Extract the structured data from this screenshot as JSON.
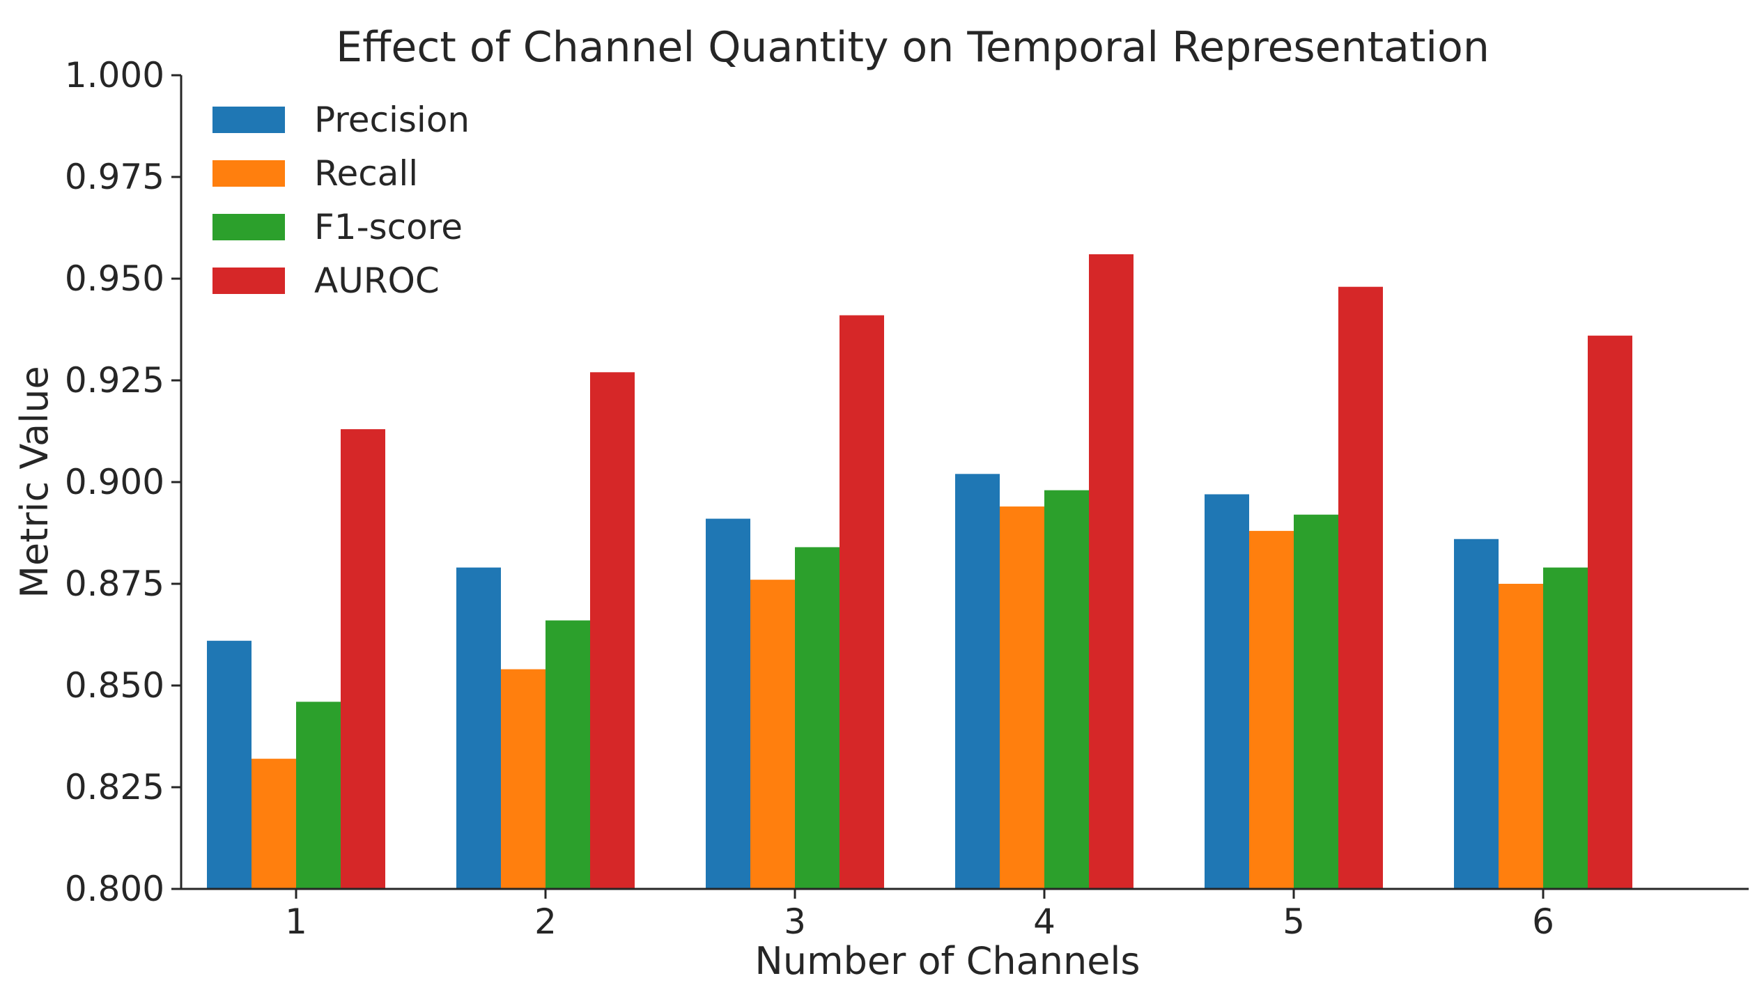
{
  "chart_data": {
    "type": "bar",
    "title": "Effect of Channel Quantity on Temporal Representation",
    "xlabel": "Number of Channels",
    "ylabel": "Metric Value",
    "categories": [
      "1",
      "2",
      "3",
      "4",
      "5",
      "6"
    ],
    "ylim": [
      0.8,
      1.0
    ],
    "yticks": [
      "0.800",
      "0.825",
      "0.850",
      "0.875",
      "0.900",
      "0.925",
      "0.950",
      "0.975",
      "1.000"
    ],
    "grid": false,
    "legend_position": "top-left",
    "series": [
      {
        "name": "Precision",
        "color": "#1f77b4",
        "values": [
          0.861,
          0.879,
          0.891,
          0.902,
          0.897,
          0.886
        ]
      },
      {
        "name": "Recall",
        "color": "#ff7f0e",
        "values": [
          0.832,
          0.854,
          0.876,
          0.894,
          0.888,
          0.875
        ]
      },
      {
        "name": "F1-score",
        "color": "#2ca02c",
        "values": [
          0.846,
          0.866,
          0.884,
          0.898,
          0.892,
          0.879
        ]
      },
      {
        "name": "AUROC",
        "color": "#d62728",
        "values": [
          0.913,
          0.927,
          0.941,
          0.956,
          0.948,
          0.936
        ]
      }
    ]
  }
}
